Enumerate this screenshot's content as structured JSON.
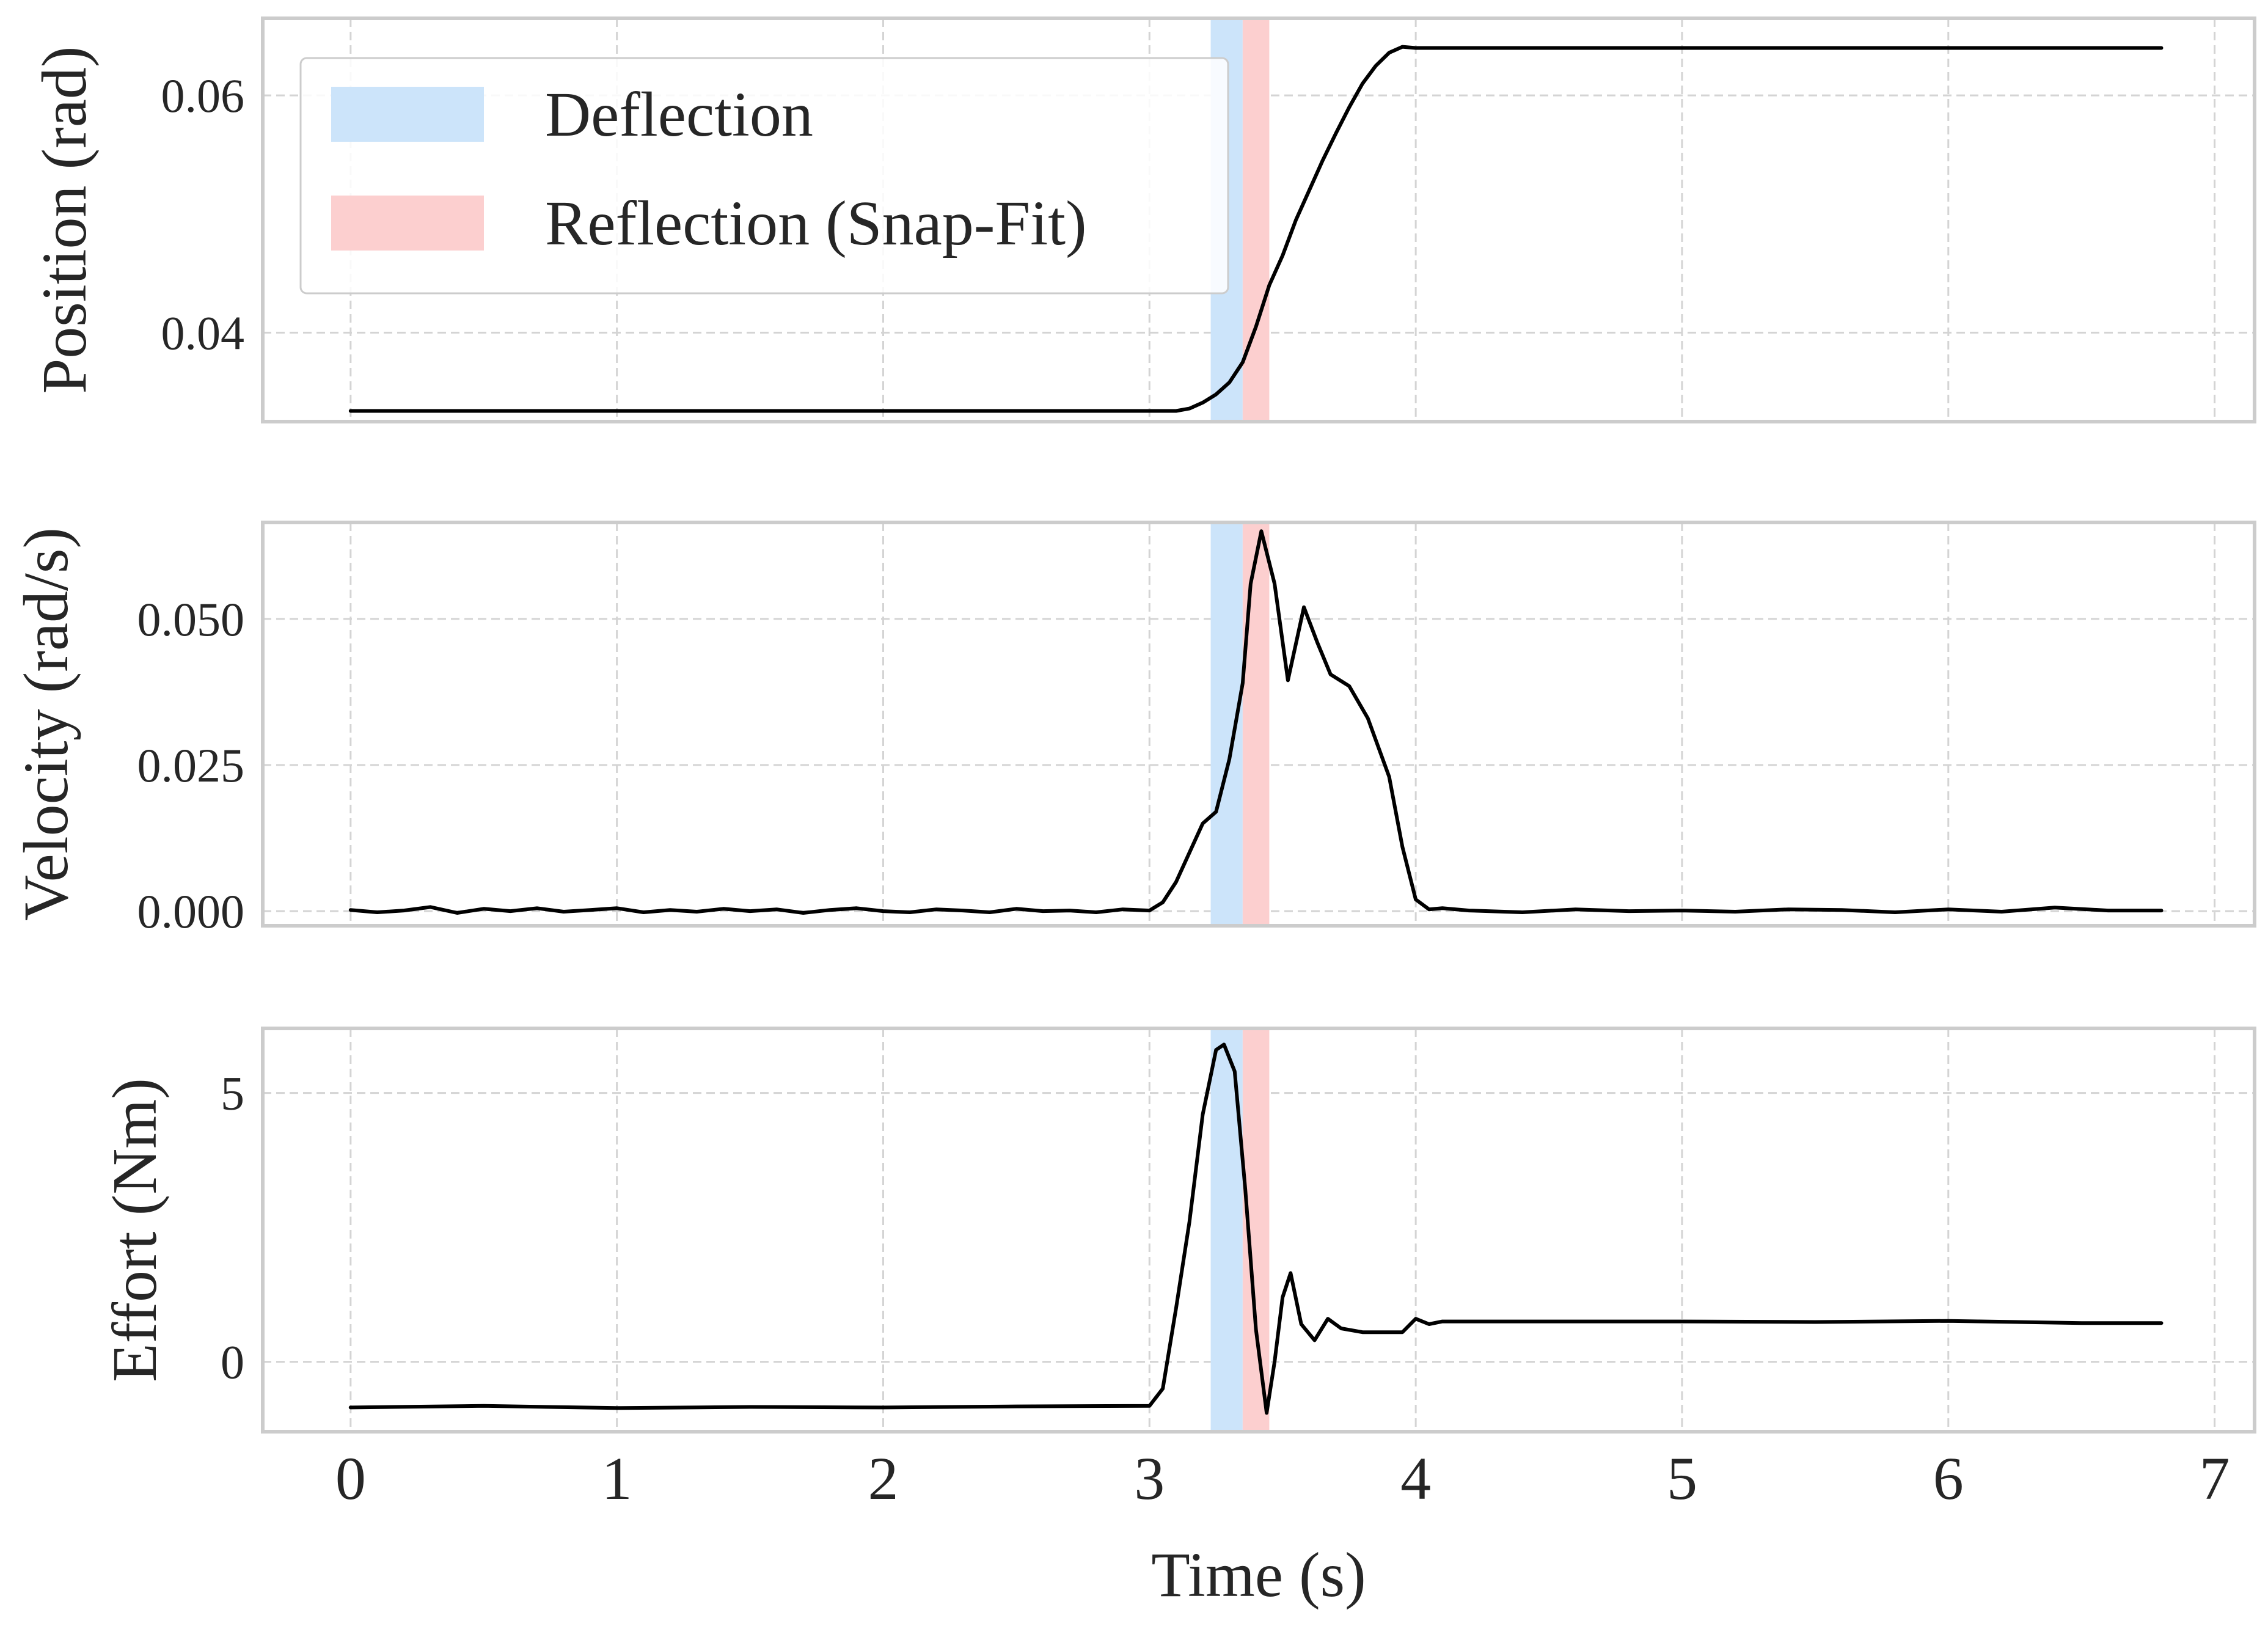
{
  "chart_data": {
    "type": "line",
    "xlabel": "Time (s)",
    "xlim": [
      -0.33,
      7.15
    ],
    "xticks": [
      0,
      1,
      2,
      3,
      4,
      5,
      6,
      7
    ],
    "xtick_labels": [
      "0",
      "1",
      "2",
      "3",
      "4",
      "5",
      "6",
      "7"
    ],
    "grid": true,
    "legend": {
      "placement": "top-left of first panel",
      "entries": [
        {
          "label": "Deflection",
          "color": "#cce4fa"
        },
        {
          "label": "Reflection (Snap-Fit)",
          "color": "#fccfcf"
        }
      ]
    },
    "regions": [
      {
        "name": "Deflection",
        "x_start": 3.23,
        "x_end": 3.35,
        "color": "#cce4fa"
      },
      {
        "name": "Reflection (Snap-Fit)",
        "x_start": 3.35,
        "x_end": 3.45,
        "color": "#fccfcf"
      }
    ],
    "panels": [
      {
        "ylabel": "Position (rad)",
        "ylim": [
          0.0325,
          0.0665
        ],
        "yticks": [
          0.04,
          0.06
        ],
        "ytick_labels": [
          "0.04",
          "0.06"
        ],
        "series": [
          {
            "name": "position",
            "color": "#000000",
            "x": [
              0,
              3.0,
              3.1,
              3.15,
              3.2,
              3.25,
              3.3,
              3.35,
              3.4,
              3.45,
              3.5,
              3.55,
              3.6,
              3.65,
              3.7,
              3.75,
              3.8,
              3.85,
              3.9,
              3.95,
              4.0,
              6.8
            ],
            "y": [
              0.0334,
              0.0334,
              0.0334,
              0.0336,
              0.0341,
              0.0348,
              0.0358,
              0.0375,
              0.0405,
              0.044,
              0.0465,
              0.0495,
              0.052,
              0.0545,
              0.0568,
              0.059,
              0.061,
              0.0625,
              0.0636,
              0.0641,
              0.064,
              0.064
            ]
          }
        ]
      },
      {
        "ylabel": "Velocity (rad/s)",
        "ylim": [
          -0.0025,
          0.0665
        ],
        "yticks": [
          0.0,
          0.025,
          0.05
        ],
        "ytick_labels": [
          "0.000",
          "0.025",
          "0.050"
        ],
        "series": [
          {
            "name": "velocity",
            "color": "#000000",
            "x": [
              0,
              0.1,
              0.2,
              0.3,
              0.4,
              0.5,
              0.6,
              0.7,
              0.8,
              0.9,
              1.0,
              1.1,
              1.2,
              1.3,
              1.4,
              1.5,
              1.6,
              1.7,
              1.8,
              1.9,
              2.0,
              2.1,
              2.2,
              2.3,
              2.4,
              2.5,
              2.6,
              2.7,
              2.8,
              2.9,
              3.0,
              3.05,
              3.1,
              3.15,
              3.2,
              3.25,
              3.3,
              3.35,
              3.38,
              3.42,
              3.47,
              3.52,
              3.58,
              3.63,
              3.68,
              3.75,
              3.82,
              3.9,
              3.95,
              4.0,
              4.05,
              4.1,
              4.2,
              4.4,
              4.6,
              4.8,
              5.0,
              5.2,
              5.4,
              5.6,
              5.8,
              6.0,
              6.2,
              6.4,
              6.6,
              6.8
            ],
            "y": [
              0.0002,
              -0.0002,
              0.0001,
              0.0007,
              -0.0003,
              0.0004,
              0.0,
              0.0005,
              -0.0001,
              0.0002,
              0.0005,
              -0.0002,
              0.0002,
              -0.0001,
              0.0004,
              0.0,
              0.0003,
              -0.0003,
              0.0002,
              0.0005,
              0.0,
              -0.0002,
              0.0003,
              0.0001,
              -0.0002,
              0.0004,
              0.0,
              0.0001,
              -0.0002,
              0.0003,
              0.0001,
              0.0015,
              0.005,
              0.01,
              0.015,
              0.017,
              0.026,
              0.039,
              0.056,
              0.065,
              0.056,
              0.0395,
              0.052,
              0.046,
              0.0405,
              0.0385,
              0.033,
              0.023,
              0.011,
              0.002,
              0.0003,
              0.0005,
              0.0001,
              -0.0002,
              0.0003,
              0.0,
              0.0001,
              -0.0001,
              0.0003,
              0.0002,
              -0.0002,
              0.0003,
              -0.0001,
              0.0006,
              0.0001,
              0.0001
            ]
          }
        ]
      },
      {
        "ylabel": "Effort (Nm)",
        "ylim": [
          -1.3,
          6.2
        ],
        "yticks": [
          0,
          5
        ],
        "ytick_labels": [
          "0",
          "5"
        ],
        "series": [
          {
            "name": "effort",
            "color": "#000000",
            "x": [
              0,
              0.5,
              1.0,
              1.5,
              2.0,
              2.5,
              3.0,
              3.05,
              3.1,
              3.15,
              3.2,
              3.25,
              3.28,
              3.32,
              3.36,
              3.4,
              3.44,
              3.47,
              3.5,
              3.53,
              3.57,
              3.62,
              3.67,
              3.72,
              3.8,
              3.9,
              3.95,
              4.0,
              4.05,
              4.1,
              4.5,
              5.0,
              5.5,
              6.0,
              6.5,
              6.8
            ],
            "y": [
              -0.85,
              -0.82,
              -0.86,
              -0.84,
              -0.85,
              -0.83,
              -0.82,
              -0.5,
              1.0,
              2.6,
              4.6,
              5.8,
              5.9,
              5.4,
              3.2,
              0.6,
              -0.95,
              0.0,
              1.2,
              1.65,
              0.7,
              0.4,
              0.8,
              0.62,
              0.55,
              0.55,
              0.55,
              0.8,
              0.7,
              0.75,
              0.75,
              0.75,
              0.74,
              0.76,
              0.72,
              0.72
            ]
          }
        ]
      }
    ]
  }
}
